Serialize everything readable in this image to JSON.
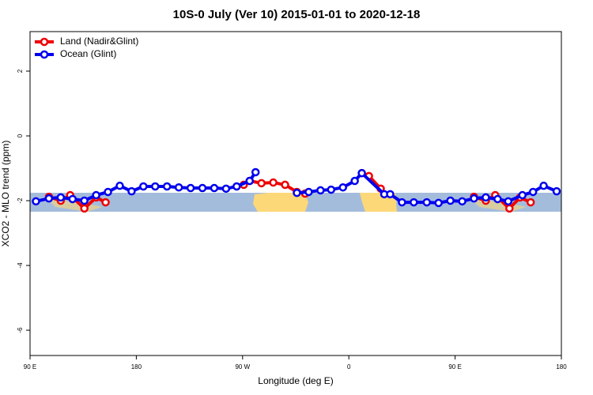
{
  "chart_data": {
    "type": "line",
    "title": "10S-0 July (Ver 10)   2015-01-01 to 2020-12-18",
    "x_label": "Longitude (deg E)",
    "y_label": "XCO2 - MLO trend (ppm)",
    "xlim": [
      90,
      540
    ],
    "xticks": [
      {
        "value": 90,
        "label": "90 E"
      },
      {
        "value": 180,
        "label": "180"
      },
      {
        "value": 270,
        "label": "90 W"
      },
      {
        "value": 360,
        "label": "0"
      },
      {
        "value": 450,
        "label": "90 E"
      },
      {
        "value": 540,
        "label": "180"
      }
    ],
    "ylim": [
      -6.78,
      3.22
    ],
    "yticks": [
      2,
      0,
      -2,
      -4,
      -6
    ],
    "legend": "top-left",
    "series": [
      {
        "name": "Land (Nadir&Glint)",
        "color": "#ee0000",
        "x": [
          106,
          116,
          124,
          136,
          146,
          154,
          null,
          271,
          276,
          286,
          296,
          306,
          316,
          323,
          null,
          371,
          377,
          387,
          null,
          466,
          476,
          484,
          496,
          505,
          514
        ],
        "values": [
          -1.88,
          -2.0,
          -1.83,
          -2.24,
          -1.9,
          -2.05,
          null,
          -1.51,
          -1.39,
          -1.46,
          -1.44,
          -1.51,
          -1.73,
          -1.78,
          null,
          -1.15,
          -1.24,
          -1.63,
          null,
          -1.88,
          -2.0,
          -1.83,
          -2.24,
          -1.9,
          -2.05
        ]
      },
      {
        "name": "Ocean (Glint)",
        "color": "#0000ee",
        "x": [
          95,
          106,
          116,
          126,
          136,
          146,
          156,
          166,
          176,
          186,
          196,
          206,
          216,
          226,
          236,
          246,
          256,
          265,
          276,
          281,
          null,
          316,
          326,
          336,
          345,
          355,
          365,
          371,
          390,
          395,
          405,
          415,
          426,
          436,
          446,
          456,
          466,
          476,
          486,
          495,
          507,
          516,
          525,
          536
        ],
        "values": [
          -2.02,
          -1.93,
          -1.9,
          -1.95,
          -2.0,
          -1.83,
          -1.73,
          -1.54,
          -1.71,
          -1.56,
          -1.56,
          -1.56,
          -1.59,
          -1.61,
          -1.61,
          -1.61,
          -1.63,
          -1.56,
          -1.39,
          -1.12,
          null,
          -1.76,
          -1.73,
          -1.68,
          -1.66,
          -1.59,
          -1.39,
          -1.15,
          -1.8,
          -1.8,
          -2.05,
          -2.05,
          -2.05,
          -2.07,
          -2.0,
          -2.02,
          -1.93,
          -1.9,
          -1.95,
          -2.02,
          -1.83,
          -1.73,
          -1.54,
          -1.71
        ]
      }
    ]
  }
}
